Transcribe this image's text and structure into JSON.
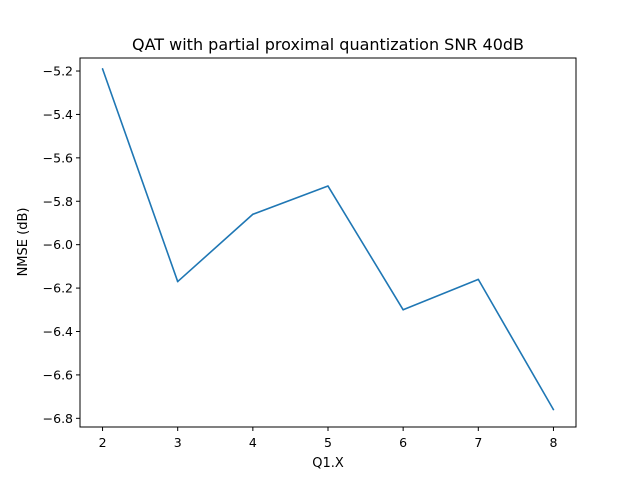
{
  "chart_data": {
    "type": "line",
    "title": "QAT with partial proximal quantization SNR 40dB",
    "xlabel": "Q1.X",
    "ylabel": "NMSE (dB)",
    "x_ticks": [
      "2",
      "3",
      "4",
      "5",
      "6",
      "7",
      "8"
    ],
    "y_ticks": [
      "−6.8",
      "−6.6",
      "−6.4",
      "−6.2",
      "−6.0",
      "−5.8",
      "−5.6",
      "−5.4",
      "−5.2"
    ],
    "y_tick_values": [
      -6.8,
      -6.6,
      -6.4,
      -6.2,
      -6.0,
      -5.8,
      -5.6,
      -5.4,
      -5.2
    ],
    "xlim": [
      1.7,
      8.3
    ],
    "ylim": [
      -6.84,
      -5.14
    ],
    "grid": false,
    "series": [
      {
        "x": [
          2,
          3,
          4,
          5,
          6,
          7,
          8
        ],
        "values": [
          -5.19,
          -6.17,
          -5.86,
          -5.73,
          -6.3,
          -6.16,
          -6.76
        ],
        "color": "#1f77b4"
      }
    ]
  }
}
